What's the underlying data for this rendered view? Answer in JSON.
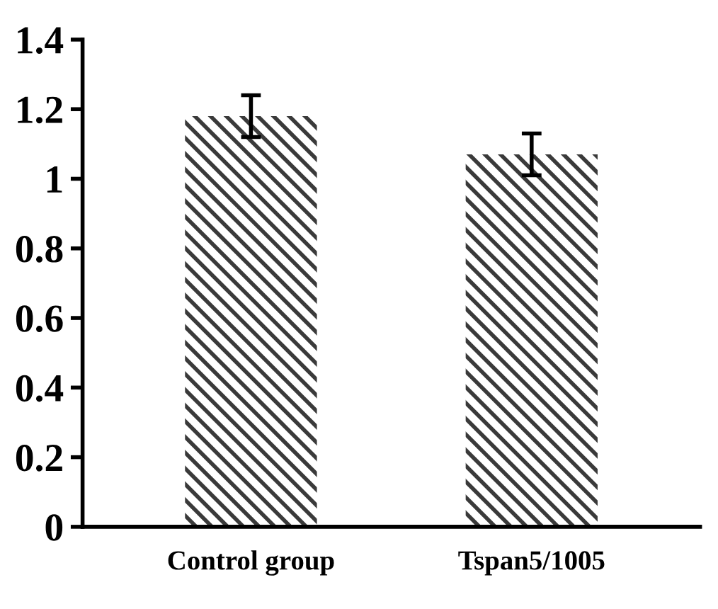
{
  "chart_data": {
    "type": "bar",
    "categories": [
      "Control group",
      "Tspan5/1005"
    ],
    "values": [
      1.18,
      1.07
    ],
    "errors": [
      0.06,
      0.06
    ],
    "color": "#3a3a3a",
    "ylim": [
      0,
      1.4
    ],
    "yticks": [
      0,
      0.2,
      0.4,
      0.6,
      0.8,
      1,
      1.2,
      1.4
    ],
    "grid": false,
    "legend": false
  }
}
